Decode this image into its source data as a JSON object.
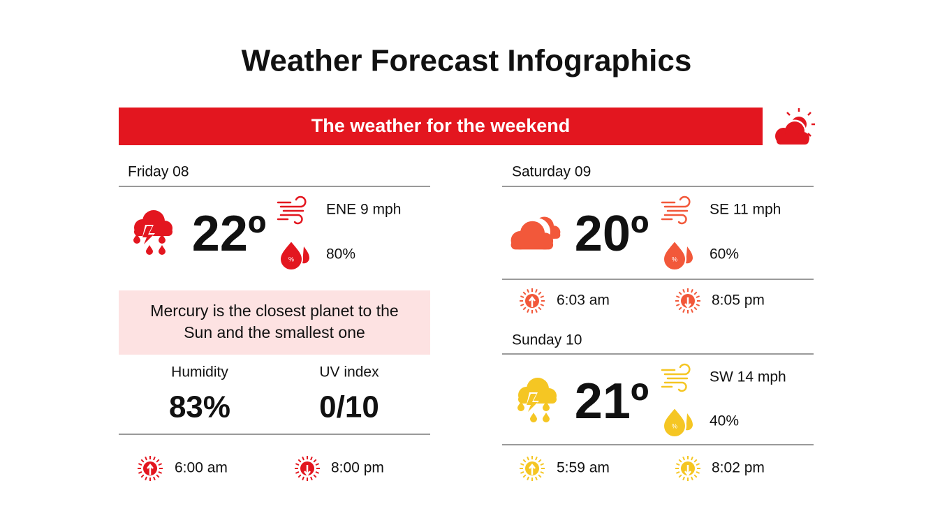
{
  "title": "Weather Forecast Infographics",
  "banner": "The weather for the weekend",
  "days": [
    {
      "name": "Friday 08",
      "temp": "22º",
      "wind": "ENE 9 mph",
      "rain": "80%",
      "sunrise": "6:00 am",
      "sunset": "8:00 pm",
      "color": "#e3161f"
    },
    {
      "name": "Saturday 09",
      "temp": "20º",
      "wind": "SE 11 mph",
      "rain": "60%",
      "sunrise": "6:03 am",
      "sunset": "8:05 pm",
      "color": "#f2583a"
    },
    {
      "name": "Sunday 10",
      "temp": "21º",
      "wind": "SW 14 mph",
      "rain": "40%",
      "sunrise": "5:59 am",
      "sunset": "8:02 pm",
      "color": "#f5c623"
    }
  ],
  "note": [
    "Mercury is the closest planet to the",
    "Sun and the smallest one"
  ],
  "stats": [
    {
      "label": "Humidity",
      "value": "83%"
    },
    {
      "label": "UV index",
      "value": "0/10"
    }
  ]
}
